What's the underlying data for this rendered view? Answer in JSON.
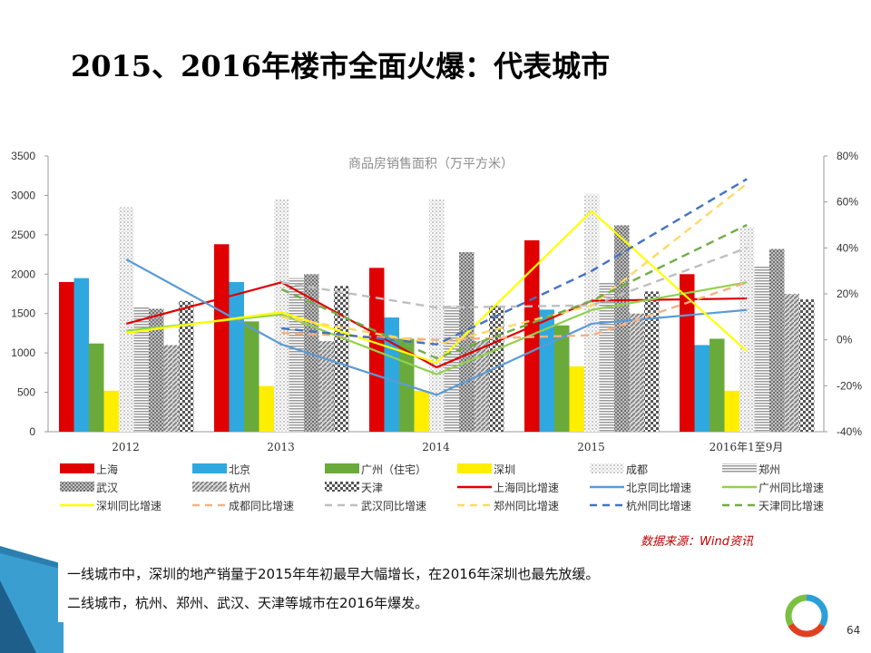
{
  "slide": {
    "title": "2015、2016年楼市全面火爆：代表城市",
    "source": "数据来源：Wind资讯",
    "notes": [
      "一线城市中，深圳的地产销量于2015年年初最早大幅增长，在2016年深圳也最先放缓。",
      "二线城市，杭州、郑州、武汉、天津等城市在2016年爆发。"
    ],
    "page_number": "64"
  },
  "chart_data": {
    "type": "bar",
    "title": "商品房销售面积（万平方米）",
    "categories": [
      "2012",
      "2013",
      "2014",
      "2015",
      "2016年1至9月"
    ],
    "ylim_left": [
      0,
      3500
    ],
    "yticks_left": [
      "0",
      "500",
      "1000",
      "1500",
      "2000",
      "2500",
      "3000",
      "3500"
    ],
    "ylim_right": [
      -40,
      80
    ],
    "yticks_right": [
      "-40%",
      "-20%",
      "0%",
      "20%",
      "40%",
      "60%",
      "80%"
    ],
    "bar_series": [
      {
        "name": "上海",
        "color": "#e00000",
        "pattern": "solid",
        "values": [
          1900,
          2380,
          2080,
          2430,
          2000
        ]
      },
      {
        "name": "北京",
        "color": "#2fa8e0",
        "pattern": "solid",
        "values": [
          1950,
          1900,
          1450,
          1550,
          1100
        ]
      },
      {
        "name": "广州（住宅）",
        "color": "#6aaa3a",
        "pattern": "solid",
        "values": [
          1120,
          1400,
          1180,
          1350,
          1180
        ]
      },
      {
        "name": "深圳",
        "color": "#ffee00",
        "pattern": "solid",
        "values": [
          520,
          580,
          520,
          830,
          520
        ]
      },
      {
        "name": "成都",
        "color": "#cccccc",
        "pattern": "dots-light",
        "values": [
          2850,
          2950,
          2950,
          3020,
          2600
        ]
      },
      {
        "name": "郑州",
        "color": "#9a9a9a",
        "pattern": "hlines",
        "values": [
          1580,
          1950,
          1600,
          1900,
          2100
        ]
      },
      {
        "name": "武汉",
        "color": "#8a8a8a",
        "pattern": "dots-dark",
        "values": [
          1560,
          2000,
          2280,
          2620,
          2320
        ]
      },
      {
        "name": "杭州",
        "color": "#8a8a8a",
        "pattern": "diag",
        "values": [
          1100,
          1150,
          1150,
          1500,
          1750
        ]
      },
      {
        "name": "天津",
        "color": "#777777",
        "pattern": "check",
        "values": [
          1660,
          1850,
          1600,
          1780,
          1680
        ]
      }
    ],
    "line_series": [
      {
        "name": "上海同比增速",
        "color": "#e00000",
        "dash": "solid",
        "values": [
          7,
          25,
          -12,
          17,
          18
        ]
      },
      {
        "name": "北京同比增速",
        "color": "#5b9bd5",
        "dash": "solid",
        "values": [
          35,
          -2,
          -24,
          7,
          13
        ]
      },
      {
        "name": "广州同比增速",
        "color": "#92d050",
        "dash": "solid",
        "values": [
          4,
          11,
          -15,
          13,
          25
        ]
      },
      {
        "name": "深圳同比增速",
        "color": "#ffff00",
        "dash": "solid",
        "values": [
          3,
          12,
          -10,
          56,
          -5
        ]
      },
      {
        "name": "成都同比增速",
        "color": "#f4b183",
        "dash": "dash",
        "values": [
          null,
          3,
          0,
          2,
          25
        ]
      },
      {
        "name": "武汉同比增速",
        "color": "#bfbfbf",
        "dash": "dash",
        "values": [
          null,
          25,
          14,
          15,
          40
        ]
      },
      {
        "name": "郑州同比增速",
        "color": "#ffd966",
        "dash": "dash",
        "values": [
          null,
          10,
          -2,
          15,
          68
        ]
      },
      {
        "name": "杭州同比增速",
        "color": "#4472c4",
        "dash": "dash",
        "values": [
          null,
          5,
          -2,
          30,
          70
        ]
      },
      {
        "name": "天津同比增速",
        "color": "#70ad47",
        "dash": "dash",
        "values": [
          null,
          22,
          -8,
          17,
          50
        ]
      }
    ],
    "legend": "bottom"
  }
}
